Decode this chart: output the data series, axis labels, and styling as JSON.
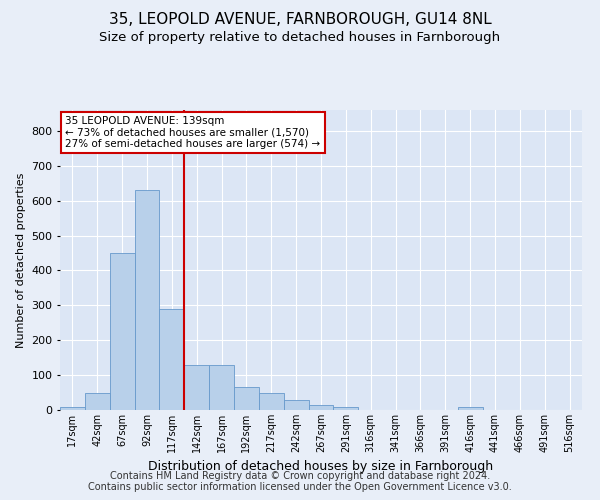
{
  "title": "35, LEOPOLD AVENUE, FARNBOROUGH, GU14 8NL",
  "subtitle": "Size of property relative to detached houses in Farnborough",
  "xlabel": "Distribution of detached houses by size in Farnborough",
  "ylabel": "Number of detached properties",
  "footnote": "Contains HM Land Registry data © Crown copyright and database right 2024.\nContains public sector information licensed under the Open Government Licence v3.0.",
  "bin_labels": [
    "17sqm",
    "42sqm",
    "67sqm",
    "92sqm",
    "117sqm",
    "142sqm",
    "167sqm",
    "192sqm",
    "217sqm",
    "242sqm",
    "267sqm",
    "291sqm",
    "316sqm",
    "341sqm",
    "366sqm",
    "391sqm",
    "416sqm",
    "441sqm",
    "466sqm",
    "491sqm",
    "516sqm"
  ],
  "bar_values": [
    10,
    50,
    450,
    630,
    290,
    130,
    130,
    65,
    50,
    30,
    15,
    10,
    0,
    0,
    0,
    0,
    10,
    0,
    0,
    0,
    0
  ],
  "bar_color": "#b8d0ea",
  "bar_edge_color": "#6699cc",
  "vline_color": "#cc0000",
  "annotation_text": "35 LEOPOLD AVENUE: 139sqm\n← 73% of detached houses are smaller (1,570)\n27% of semi-detached houses are larger (574) →",
  "annotation_box_color": "#ffffff",
  "annotation_box_edge": "#cc0000",
  "ylim": [
    0,
    860
  ],
  "yticks": [
    0,
    100,
    200,
    300,
    400,
    500,
    600,
    700,
    800
  ],
  "bg_color": "#e8eef8",
  "plot_bg": "#dce6f5",
  "title_fontsize": 11,
  "subtitle_fontsize": 9.5,
  "footnote_fontsize": 7,
  "ylabel_fontsize": 8,
  "xlabel_fontsize": 9
}
